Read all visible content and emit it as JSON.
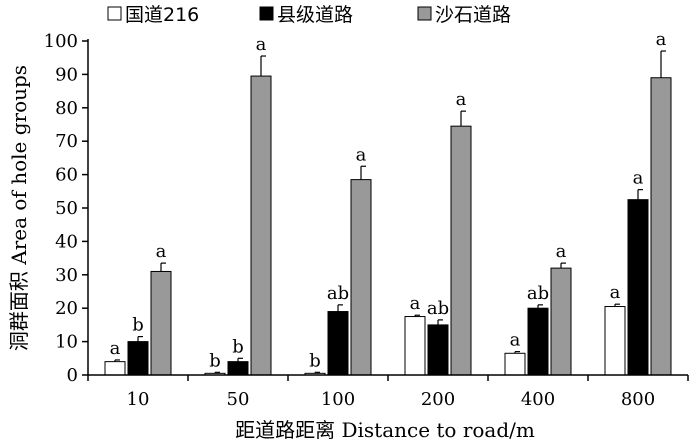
{
  "chart_data": {
    "type": "bar",
    "xlabel": "距道路距离 Distance to road/m",
    "ylabel": "洞群面积 Area of hole groups",
    "categories": [
      "10",
      "50",
      "100",
      "200",
      "400",
      "800"
    ],
    "ylim": [
      0,
      100
    ],
    "yticks": [
      0,
      10,
      20,
      30,
      40,
      50,
      60,
      70,
      80,
      90,
      100
    ],
    "grid": false,
    "legend_position": "top",
    "series": [
      {
        "name": "国道216",
        "fill": "#ffffff",
        "values": [
          4,
          0.5,
          0.5,
          17.5,
          6.5,
          20.5
        ],
        "errors": [
          0.5,
          0.3,
          0.3,
          0.4,
          0.5,
          0.7
        ],
        "letters": [
          "a",
          "b",
          "b",
          "a",
          "a",
          "a"
        ]
      },
      {
        "name": "县级道路",
        "fill": "#000000",
        "values": [
          10,
          4,
          19,
          15,
          20,
          52.5
        ],
        "errors": [
          1.5,
          1.0,
          2.0,
          1.5,
          1.0,
          3.0
        ],
        "letters": [
          "b",
          "b",
          "ab",
          "ab",
          "ab",
          "a"
        ]
      },
      {
        "name": "沙石道路",
        "fill": "#999999",
        "values": [
          31,
          89.5,
          58.5,
          74.5,
          32,
          89
        ],
        "errors": [
          2.5,
          6.0,
          4.0,
          4.5,
          1.5,
          8.0
        ],
        "letters": [
          "a",
          "a",
          "a",
          "a",
          "a",
          "a"
        ]
      }
    ]
  }
}
